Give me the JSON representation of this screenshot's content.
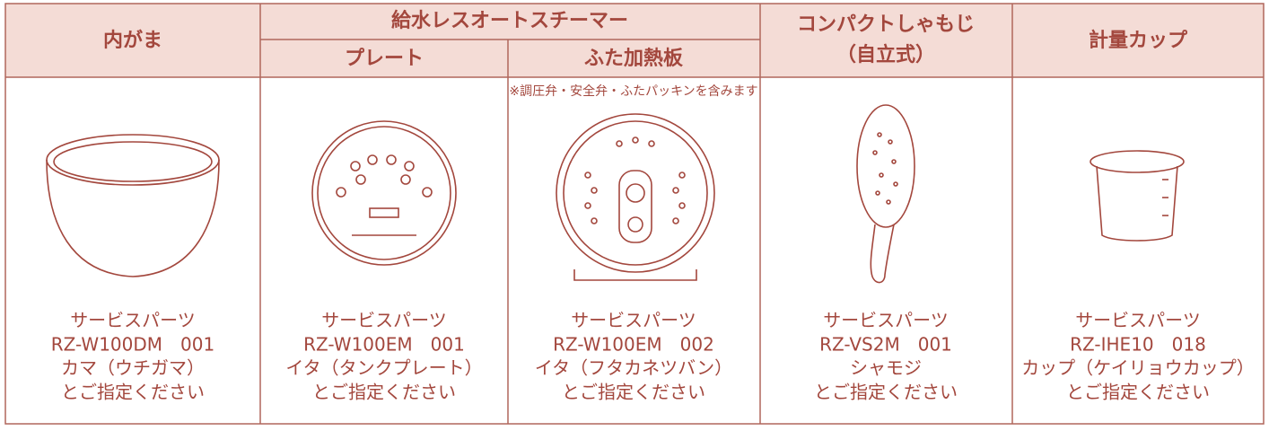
{
  "header": {
    "inner_pot": "内がま",
    "group": "給水レスオートスチーマー",
    "plate": "プレート",
    "lid_plate": "ふた加熱板",
    "paddle": [
      "コンパクトしゃもじ",
      "（自立式）"
    ],
    "cup": "計量カップ"
  },
  "note": "※調圧弁・安全弁・ふたパッキンを含みます",
  "items": [
    [
      "サービスパーツ",
      "RZ-W100DM　001",
      "カマ（ウチガマ）",
      "とご指定ください"
    ],
    [
      "サービスパーツ",
      "RZ-W100EM　001",
      "イタ（タンクプレート）",
      "とご指定ください"
    ],
    [
      "サービスパーツ",
      "RZ-W100EM　002",
      "イタ（フタカネツバン）",
      "とご指定ください"
    ],
    [
      "サービスパーツ",
      "RZ-VS2M　001",
      "シャモジ",
      "とご指定ください"
    ],
    [
      "サービスパーツ",
      "RZ-IHE10　018",
      "カップ（ケイリョウカップ）",
      "とご指定ください"
    ]
  ]
}
